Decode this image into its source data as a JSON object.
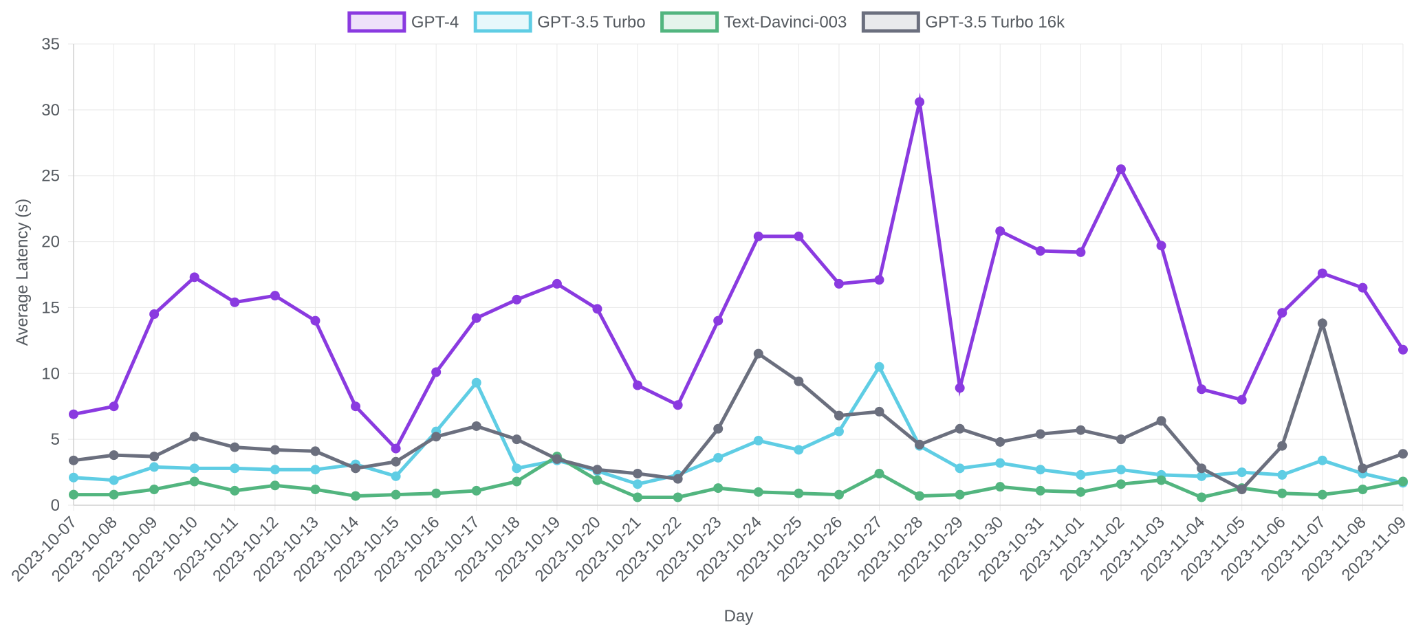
{
  "chart_data": {
    "type": "line",
    "xlabel": "Day",
    "ylabel": "Average Latency (s)",
    "ylim": [
      0,
      35
    ],
    "yticks": [
      0,
      5,
      10,
      15,
      20,
      25,
      30,
      35
    ],
    "grid": true,
    "legend_position": "top-center",
    "categories": [
      "2023-10-07",
      "2023-10-08",
      "2023-10-09",
      "2023-10-10",
      "2023-10-11",
      "2023-10-12",
      "2023-10-13",
      "2023-10-14",
      "2023-10-15",
      "2023-10-16",
      "2023-10-17",
      "2023-10-18",
      "2023-10-19",
      "2023-10-20",
      "2023-10-21",
      "2023-10-22",
      "2023-10-23",
      "2023-10-24",
      "2023-10-25",
      "2023-10-26",
      "2023-10-27",
      "2023-10-28",
      "2023-10-29",
      "2023-10-30",
      "2023-10-31",
      "2023-11-01",
      "2023-11-02",
      "2023-11-03",
      "2023-11-04",
      "2023-11-05",
      "2023-11-06",
      "2023-11-07",
      "2023-11-08",
      "2023-11-09"
    ],
    "series": [
      {
        "name": "GPT-4",
        "color": "#8a3ae0",
        "values": [
          6.9,
          7.5,
          14.5,
          17.3,
          15.4,
          15.9,
          14.0,
          7.5,
          4.3,
          10.1,
          14.2,
          15.6,
          16.8,
          14.9,
          9.1,
          7.6,
          14.0,
          20.4,
          20.4,
          16.8,
          17.1,
          30.6,
          8.9,
          20.8,
          19.3,
          19.2,
          25.5,
          19.7,
          8.8,
          8.0,
          14.6,
          17.6,
          16.5,
          11.8
        ]
      },
      {
        "name": "GPT-3.5 Turbo",
        "color": "#5fcde4",
        "values": [
          2.1,
          1.9,
          2.9,
          2.8,
          2.8,
          2.7,
          2.7,
          3.1,
          2.2,
          5.6,
          9.3,
          2.8,
          3.4,
          2.6,
          1.6,
          2.3,
          3.6,
          4.9,
          4.2,
          5.6,
          10.5,
          4.5,
          2.8,
          3.2,
          2.7,
          2.3,
          2.7,
          2.3,
          2.2,
          2.5,
          2.3,
          3.4,
          2.4,
          1.7
        ]
      },
      {
        "name": "Text-Davinci-003",
        "color": "#52b57f",
        "values": [
          0.8,
          0.8,
          1.2,
          1.8,
          1.1,
          1.5,
          1.2,
          0.7,
          0.8,
          0.9,
          1.1,
          1.8,
          3.7,
          1.9,
          0.6,
          0.6,
          1.3,
          1.0,
          0.9,
          0.8,
          2.4,
          0.7,
          0.8,
          1.4,
          1.1,
          1.0,
          1.6,
          1.9,
          0.6,
          1.3,
          0.9,
          0.8,
          1.2,
          1.8
        ]
      },
      {
        "name": "GPT-3.5 Turbo 16k",
        "color": "#6b6f7e",
        "values": [
          3.4,
          3.8,
          3.7,
          5.2,
          4.4,
          4.2,
          4.1,
          2.8,
          3.3,
          5.2,
          6.0,
          5.0,
          3.5,
          2.7,
          2.4,
          2.0,
          5.8,
          11.5,
          9.4,
          6.8,
          7.1,
          4.6,
          5.8,
          4.8,
          5.4,
          5.7,
          5.0,
          6.4,
          2.8,
          1.2,
          4.5,
          13.8,
          2.8,
          3.9
        ]
      }
    ]
  }
}
